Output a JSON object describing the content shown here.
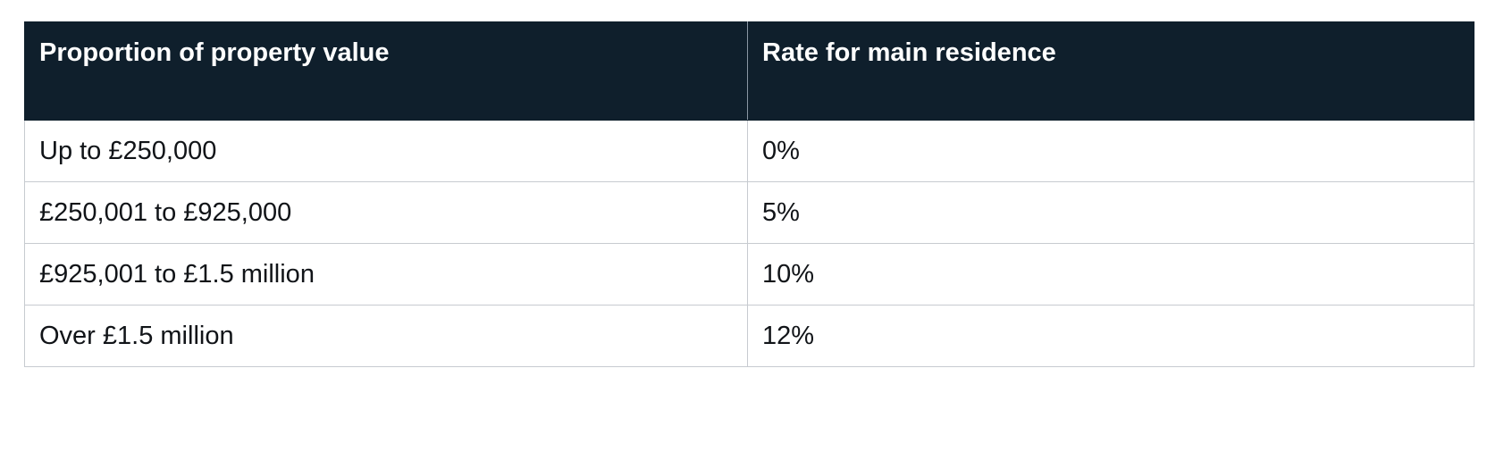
{
  "table": {
    "headers": [
      "Proportion of property value",
      "Rate for main residence"
    ],
    "rows": [
      [
        "Up to £250,000",
        "0%"
      ],
      [
        "£250,001 to £925,000",
        "5%"
      ],
      [
        "£925,001 to £1.5 million",
        "10%"
      ],
      [
        "Over £1.5 million",
        "12%"
      ]
    ]
  },
  "colors": {
    "header_background": "#0f1f2c",
    "header_text": "#ffffff",
    "border": "#c7cbd0",
    "body_text": "#111418"
  }
}
